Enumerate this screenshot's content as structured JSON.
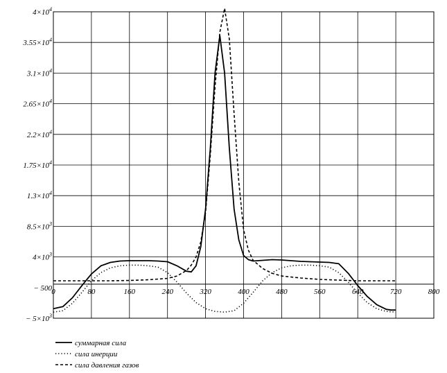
{
  "chart_data": {
    "type": "line",
    "x_axis": {
      "min": 0,
      "max": 800,
      "ticks": [
        0,
        80,
        160,
        240,
        320,
        400,
        480,
        560,
        640,
        720,
        800
      ],
      "tick_labels": [
        "0",
        "80",
        "160",
        "240",
        "320",
        "400",
        "480",
        "560",
        "640",
        "720",
        "800"
      ]
    },
    "y_axis": {
      "min": -5000,
      "max": 40000,
      "ticks": [
        -5000,
        4000,
        8500,
        13000,
        17500,
        22000,
        26500,
        31000,
        35500,
        40000
      ],
      "tick_labels": [
        {
          "base": "− 5×10",
          "exp": "3"
        },
        {
          "base": "4×10",
          "exp": "3"
        },
        {
          "base": "8.5×10",
          "exp": "3"
        },
        {
          "base": "1.3×10",
          "exp": "4"
        },
        {
          "base": "1.75×10",
          "exp": "4"
        },
        {
          "base": "2.2×10",
          "exp": "4"
        },
        {
          "base": "2.65×10",
          "exp": "4"
        },
        {
          "base": "3.1×10",
          "exp": "4"
        },
        {
          "base": "3.55×10",
          "exp": "4"
        },
        {
          "base": "4×10",
          "exp": "4"
        }
      ],
      "extra_label": {
        "value": -500,
        "text": "− 500"
      }
    },
    "grid": true,
    "legend_position": "bottom-left",
    "series": [
      {
        "name": "суммарная сила",
        "style": "solid",
        "color": "#000000",
        "x": [
          0,
          20,
          40,
          60,
          80,
          100,
          120,
          140,
          160,
          180,
          200,
          220,
          240,
          260,
          280,
          290,
          300,
          310,
          320,
          330,
          340,
          350,
          360,
          370,
          380,
          390,
          400,
          410,
          420,
          440,
          460,
          480,
          500,
          520,
          540,
          560,
          580,
          600,
          620,
          640,
          660,
          680,
          700,
          710,
          720
        ],
        "y": [
          -3600,
          -3300,
          -2000,
          -200,
          1500,
          2700,
          3200,
          3400,
          3450,
          3450,
          3450,
          3400,
          3300,
          2700,
          1900,
          1800,
          2700,
          5500,
          11000,
          20000,
          31000,
          36500,
          31000,
          20000,
          11000,
          6500,
          4200,
          3600,
          3400,
          3500,
          3600,
          3550,
          3450,
          3350,
          3300,
          3250,
          3200,
          3000,
          1600,
          -200,
          -1800,
          -3000,
          -3700,
          -3800,
          -3800
        ]
      },
      {
        "name": "сила инерции",
        "style": "dotted",
        "color": "#000000",
        "x": [
          0,
          20,
          40,
          60,
          80,
          100,
          120,
          140,
          160,
          180,
          200,
          220,
          240,
          260,
          280,
          300,
          320,
          340,
          360,
          380,
          400,
          420,
          440,
          460,
          480,
          500,
          520,
          540,
          560,
          580,
          600,
          620,
          640,
          660,
          680,
          700,
          720
        ],
        "y": [
          -4100,
          -3900,
          -2800,
          -1200,
          500,
          1700,
          2400,
          2700,
          2800,
          2800,
          2700,
          2500,
          1700,
          300,
          -1300,
          -2700,
          -3600,
          -4000,
          -4100,
          -3900,
          -2800,
          -1200,
          500,
          1700,
          2400,
          2700,
          2800,
          2800,
          2700,
          2500,
          1700,
          300,
          -1300,
          -2700,
          -3600,
          -4000,
          -4100
        ]
      },
      {
        "name": "сила давления газов",
        "style": "dashed",
        "color": "#000000",
        "x": [
          0,
          40,
          80,
          120,
          160,
          200,
          240,
          260,
          280,
          290,
          300,
          310,
          320,
          330,
          340,
          350,
          360,
          370,
          380,
          390,
          400,
          410,
          420,
          440,
          460,
          480,
          520,
          560,
          600,
          640,
          680,
          720
        ],
        "y": [
          500,
          500,
          500,
          500,
          550,
          650,
          850,
          1200,
          2000,
          2800,
          4000,
          6200,
          10500,
          19000,
          29000,
          37000,
          40500,
          36000,
          25000,
          15000,
          8000,
          5000,
          3500,
          2300,
          1600,
          1200,
          900,
          700,
          600,
          500,
          500,
          500
        ]
      }
    ]
  }
}
